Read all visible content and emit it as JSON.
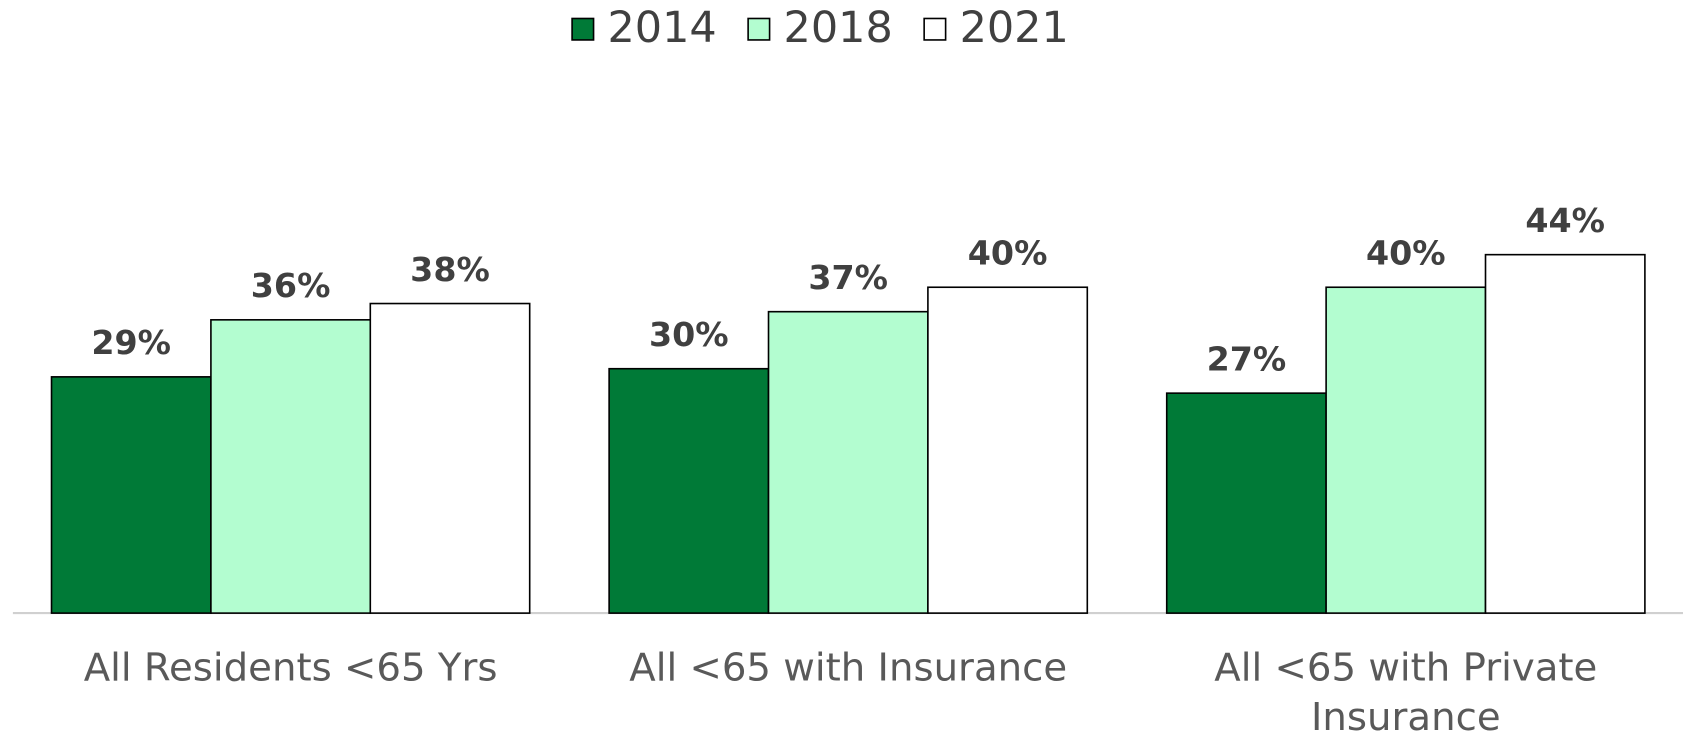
{
  "chart_data": {
    "type": "bar",
    "categories": [
      "All Residents <65 Yrs",
      "All <65 with Insurance",
      "All <65 with Private Insurance"
    ],
    "series": [
      {
        "name": "2014",
        "color": "#007a37",
        "values": [
          29,
          30,
          27
        ],
        "value_labels": [
          "29%",
          "30%",
          "27%"
        ]
      },
      {
        "name": "2018",
        "color": "#b3fdd0",
        "values": [
          36,
          37,
          40
        ],
        "value_labels": [
          "36%",
          "37%",
          "40%"
        ]
      },
      {
        "name": "2021",
        "color": "#ffffff",
        "values": [
          38,
          40,
          44
        ],
        "value_labels": [
          "38%",
          "40%",
          "44%"
        ]
      }
    ],
    "legend": "top"
  }
}
